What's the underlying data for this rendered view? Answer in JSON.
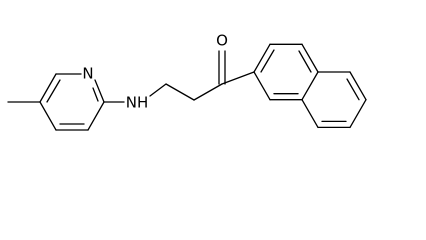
{
  "atoms": {
    "ring_nitrogen": "N",
    "amine": "NH",
    "carbonyl_oxygen": "O"
  }
}
